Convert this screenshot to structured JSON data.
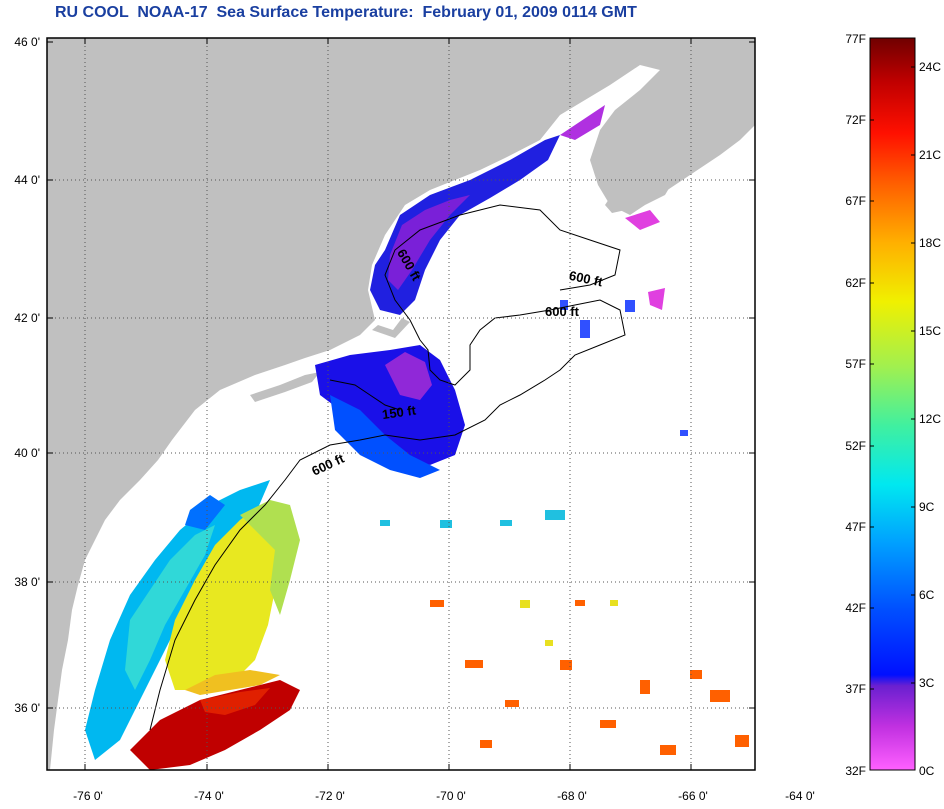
{
  "title": "RU COOL  NOAA-17  Sea Surface Temperature:  February 01, 2009 0114 GMT",
  "latitude_labels": [
    "46 0'",
    "44 0'",
    "42 0'",
    "40 0'",
    "38 0'",
    "36 0'"
  ],
  "longitude_labels": [
    "-76 0'",
    "-74 0'",
    "-72 0'",
    "-70 0'",
    "-68 0'",
    "-66 0'",
    "-64 0'"
  ],
  "contour_labels": [
    "600 ft",
    "600 ft",
    "600 ft",
    "150 ft",
    "600 ft"
  ],
  "colorbar": {
    "fahrenheit_labels": [
      "77F",
      "72F",
      "67F",
      "62F",
      "57F",
      "52F",
      "47F",
      "42F",
      "37F",
      "32F"
    ],
    "celsius_labels": [
      "24C",
      "21C",
      "18C",
      "15C",
      "12C",
      "9C",
      "6C",
      "3C",
      "0C"
    ]
  },
  "colors": {
    "land": "#c0c0c0",
    "water_no_data": "#ffffff",
    "title": "#1a3fa0"
  }
}
